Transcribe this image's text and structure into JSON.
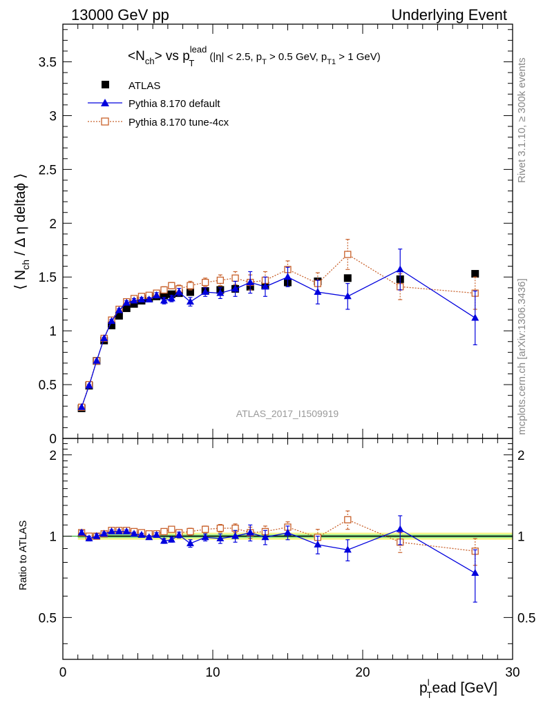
{
  "header": {
    "left": "13000 GeV pp",
    "right": "Underlying Event"
  },
  "plot_title": {
    "main": "<N",
    "main_sub": "ch",
    "vs": "> vs p",
    "vs_sup": "lead",
    "vs_sub": "T",
    "cuts_1": "(|η| < 2.5, p",
    "cuts_sub1": "T",
    "cuts_2": " > 0.5 GeV, p",
    "cuts_sub2": "T1",
    "cuts_3": " > 1 GeV)"
  },
  "side_labels": {
    "rivet": "Rivet 3.1.10, ≥ 300k events",
    "mcplots": "mcplots.cern.ch [arXiv:1306.3436]"
  },
  "analysis_id": "ATLAS_2017_I1509919",
  "colors": {
    "atlas": "#000000",
    "default": "#0000dd",
    "tune4cx": "#c8602a",
    "band_green": "#90ee90",
    "band_yellow": "#f5f58a",
    "ratio_line": "#22aa22"
  },
  "chart_data": [
    {
      "type": "scatter",
      "panel": "main",
      "ylabel": "⟨ N",
      "ylabel_sub": "ch",
      "ylabel_rest": "/ Δ η deltaϕ ⟩",
      "xlim": [
        0,
        30
      ],
      "ylim": [
        0,
        3.85
      ],
      "y_ticks": [
        "0",
        "0.5",
        "1",
        "1.5",
        "2",
        "2.5",
        "3",
        "3.5"
      ],
      "y_tick_values": [
        0,
        0.5,
        1,
        1.5,
        2,
        2.5,
        3,
        3.5
      ],
      "legend_position": "top-left",
      "series": [
        {
          "name": "ATLAS",
          "marker": "filled-square",
          "x": [
            1.25,
            1.75,
            2.25,
            2.75,
            3.25,
            3.75,
            4.25,
            4.75,
            5.25,
            5.75,
            6.25,
            6.75,
            7.25,
            7.75,
            8.5,
            9.5,
            10.5,
            11.5,
            12.5,
            13.5,
            15.0,
            17.0,
            19.0,
            22.5,
            27.5
          ],
          "y": [
            0.28,
            0.49,
            0.72,
            0.91,
            1.05,
            1.14,
            1.21,
            1.25,
            1.28,
            1.3,
            1.32,
            1.33,
            1.34,
            1.35,
            1.36,
            1.37,
            1.38,
            1.39,
            1.41,
            1.42,
            1.45,
            1.46,
            1.49,
            1.48,
            1.53
          ]
        },
        {
          "name": "Pythia 8.170 default",
          "marker": "filled-triangle",
          "x": [
            1.25,
            1.75,
            2.25,
            2.75,
            3.25,
            3.75,
            4.25,
            4.75,
            5.25,
            5.75,
            6.25,
            6.75,
            7.25,
            7.75,
            8.5,
            9.5,
            10.5,
            11.5,
            12.5,
            13.5,
            15.0,
            17.0,
            19.0,
            22.5,
            27.5
          ],
          "y": [
            0.29,
            0.49,
            0.72,
            0.93,
            1.09,
            1.19,
            1.26,
            1.28,
            1.29,
            1.29,
            1.33,
            1.28,
            1.3,
            1.36,
            1.27,
            1.36,
            1.35,
            1.39,
            1.45,
            1.41,
            1.5,
            1.36,
            1.32,
            1.57,
            1.12
          ],
          "err": [
            0.005,
            0.01,
            0.01,
            0.01,
            0.015,
            0.015,
            0.02,
            0.02,
            0.02,
            0.02,
            0.025,
            0.03,
            0.03,
            0.035,
            0.04,
            0.04,
            0.05,
            0.07,
            0.1,
            0.09,
            0.09,
            0.11,
            0.12,
            0.19,
            0.25
          ]
        },
        {
          "name": "Pythia 8.170 tune-4cx",
          "marker": "open-square",
          "x": [
            1.25,
            1.75,
            2.25,
            2.75,
            3.25,
            3.75,
            4.25,
            4.75,
            5.25,
            5.75,
            6.25,
            6.75,
            7.25,
            7.75,
            8.5,
            9.5,
            10.5,
            11.5,
            12.5,
            13.5,
            15.0,
            17.0,
            19.0,
            22.5,
            27.5
          ],
          "y": [
            0.29,
            0.5,
            0.72,
            0.93,
            1.1,
            1.2,
            1.27,
            1.3,
            1.32,
            1.33,
            1.35,
            1.38,
            1.42,
            1.39,
            1.42,
            1.45,
            1.47,
            1.49,
            1.45,
            1.47,
            1.57,
            1.44,
            1.71,
            1.41,
            1.35
          ],
          "err": [
            0.005,
            0.01,
            0.01,
            0.01,
            0.015,
            0.015,
            0.02,
            0.02,
            0.02,
            0.02,
            0.025,
            0.03,
            0.03,
            0.035,
            0.04,
            0.04,
            0.05,
            0.06,
            0.07,
            0.08,
            0.08,
            0.1,
            0.14,
            0.12,
            0.15
          ]
        }
      ]
    },
    {
      "type": "scatter",
      "panel": "ratio",
      "ylabel": "Ratio to ATLAS",
      "xlabel": "p",
      "xlabel_sub": "T",
      "xlabel_sup": "l",
      "xlabel_rest": "ead [GeV]",
      "xlim": [
        0,
        30
      ],
      "ylim": [
        0.35,
        2.3
      ],
      "y_ticks": [
        "0.5",
        "1",
        "2"
      ],
      "y_tick_values": [
        0.5,
        1,
        2
      ],
      "x_ticks": [
        "0",
        "10",
        "20",
        "30"
      ],
      "x_tick_values": [
        0,
        10,
        20,
        30
      ],
      "reference_band": [
        0.97,
        1.03
      ],
      "series": [
        {
          "name": "Pythia 8.170 default",
          "x": [
            1.25,
            1.75,
            2.25,
            2.75,
            3.25,
            3.75,
            4.25,
            4.75,
            5.25,
            5.75,
            6.25,
            6.75,
            7.25,
            7.75,
            8.5,
            9.5,
            10.5,
            11.5,
            12.5,
            13.5,
            15.0,
            17.0,
            19.0,
            22.5,
            27.5
          ],
          "y": [
            1.03,
            0.98,
            1.0,
            1.02,
            1.04,
            1.04,
            1.04,
            1.02,
            1.01,
            0.99,
            1.01,
            0.96,
            0.97,
            1.01,
            0.94,
            0.99,
            0.98,
            1.0,
            1.03,
            0.99,
            1.03,
            0.93,
            0.89,
            1.06,
            0.73
          ],
          "err": [
            0.02,
            0.02,
            0.02,
            0.015,
            0.015,
            0.015,
            0.015,
            0.015,
            0.015,
            0.015,
            0.02,
            0.02,
            0.02,
            0.025,
            0.03,
            0.03,
            0.04,
            0.05,
            0.07,
            0.06,
            0.06,
            0.07,
            0.08,
            0.13,
            0.16
          ]
        },
        {
          "name": "Pythia 8.170 tune-4cx",
          "x": [
            1.25,
            1.75,
            2.25,
            2.75,
            3.25,
            3.75,
            4.25,
            4.75,
            5.25,
            5.75,
            6.25,
            6.75,
            7.25,
            7.75,
            8.5,
            9.5,
            10.5,
            11.5,
            12.5,
            13.5,
            15.0,
            17.0,
            19.0,
            22.5,
            27.5
          ],
          "y": [
            1.03,
            1.0,
            1.0,
            1.02,
            1.05,
            1.05,
            1.05,
            1.04,
            1.03,
            1.02,
            1.02,
            1.04,
            1.06,
            1.03,
            1.04,
            1.06,
            1.07,
            1.07,
            1.03,
            1.04,
            1.08,
            0.99,
            1.15,
            0.95,
            0.88
          ],
          "err": [
            0.01,
            0.01,
            0.01,
            0.01,
            0.01,
            0.01,
            0.015,
            0.015,
            0.015,
            0.015,
            0.02,
            0.02,
            0.02,
            0.025,
            0.03,
            0.03,
            0.035,
            0.04,
            0.05,
            0.05,
            0.05,
            0.07,
            0.09,
            0.08,
            0.1
          ]
        }
      ]
    }
  ]
}
